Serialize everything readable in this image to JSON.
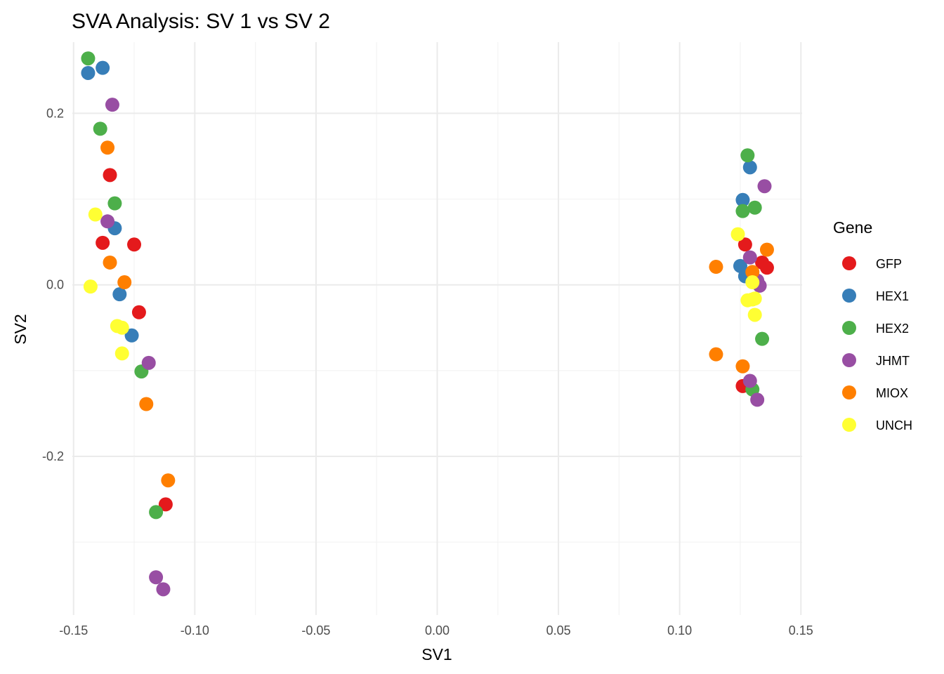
{
  "chart_data": {
    "type": "scatter",
    "title": "SVA Analysis: SV 1  vs SV 2",
    "xlabel": "SV1",
    "ylabel": "SV2",
    "xlim": [
      -0.1505,
      0.1505
    ],
    "ylim": [
      -0.385,
      0.283
    ],
    "x_ticks": [
      -0.15,
      -0.1,
      -0.05,
      0.0,
      0.05,
      0.1,
      0.15
    ],
    "x_tick_labels": [
      "-0.15",
      "-0.10",
      "-0.05",
      "0.00",
      "0.05",
      "0.10",
      "0.15"
    ],
    "y_ticks": [
      -0.2,
      0.0,
      0.2
    ],
    "y_tick_labels": [
      "-0.2",
      "0.0",
      "0.2"
    ],
    "grid": true,
    "legend": {
      "title": "Gene",
      "position": "right"
    },
    "series": [
      {
        "name": "GFP",
        "color": "#e41a1c",
        "points": [
          {
            "x": -0.135,
            "y": 0.128
          },
          {
            "x": -0.138,
            "y": 0.049
          },
          {
            "x": -0.125,
            "y": 0.047
          },
          {
            "x": -0.123,
            "y": -0.032
          },
          {
            "x": -0.112,
            "y": -0.256
          },
          {
            "x": 0.127,
            "y": 0.047
          },
          {
            "x": 0.134,
            "y": 0.026
          },
          {
            "x": 0.136,
            "y": 0.02
          },
          {
            "x": 0.126,
            "y": -0.118
          }
        ]
      },
      {
        "name": "HEX1",
        "color": "#377eb8",
        "points": [
          {
            "x": -0.144,
            "y": 0.247
          },
          {
            "x": -0.138,
            "y": 0.253
          },
          {
            "x": -0.133,
            "y": 0.066
          },
          {
            "x": -0.131,
            "y": -0.011
          },
          {
            "x": -0.126,
            "y": -0.059
          },
          {
            "x": 0.129,
            "y": 0.137
          },
          {
            "x": 0.126,
            "y": 0.099
          },
          {
            "x": 0.125,
            "y": 0.022
          },
          {
            "x": 0.127,
            "y": 0.01
          }
        ]
      },
      {
        "name": "HEX2",
        "color": "#4daf4a",
        "points": [
          {
            "x": -0.144,
            "y": 0.264
          },
          {
            "x": -0.139,
            "y": 0.182
          },
          {
            "x": -0.133,
            "y": 0.095
          },
          {
            "x": -0.122,
            "y": -0.101
          },
          {
            "x": -0.116,
            "y": -0.265
          },
          {
            "x": 0.128,
            "y": 0.151
          },
          {
            "x": 0.131,
            "y": 0.09
          },
          {
            "x": 0.126,
            "y": 0.086
          },
          {
            "x": 0.134,
            "y": -0.063
          },
          {
            "x": 0.13,
            "y": -0.122
          }
        ]
      },
      {
        "name": "JHMT",
        "color": "#984ea3",
        "points": [
          {
            "x": -0.134,
            "y": 0.21
          },
          {
            "x": -0.136,
            "y": 0.074
          },
          {
            "x": -0.119,
            "y": -0.091
          },
          {
            "x": -0.116,
            "y": -0.341
          },
          {
            "x": -0.113,
            "y": -0.355
          },
          {
            "x": 0.135,
            "y": 0.115
          },
          {
            "x": 0.129,
            "y": 0.032
          },
          {
            "x": 0.132,
            "y": 0.005
          },
          {
            "x": 0.133,
            "y": -0.001
          },
          {
            "x": 0.129,
            "y": -0.112
          },
          {
            "x": 0.132,
            "y": -0.134
          }
        ]
      },
      {
        "name": "MIOX",
        "color": "#ff7f00",
        "points": [
          {
            "x": -0.136,
            "y": 0.16
          },
          {
            "x": -0.135,
            "y": 0.026
          },
          {
            "x": -0.129,
            "y": 0.003
          },
          {
            "x": -0.12,
            "y": -0.139
          },
          {
            "x": -0.111,
            "y": -0.228
          },
          {
            "x": 0.136,
            "y": 0.041
          },
          {
            "x": 0.115,
            "y": 0.021
          },
          {
            "x": 0.13,
            "y": 0.015
          },
          {
            "x": 0.115,
            "y": -0.081
          },
          {
            "x": 0.126,
            "y": -0.095
          }
        ]
      },
      {
        "name": "UNCH",
        "color": "#ffff33",
        "points": [
          {
            "x": -0.141,
            "y": 0.082
          },
          {
            "x": -0.143,
            "y": -0.002
          },
          {
            "x": -0.132,
            "y": -0.048
          },
          {
            "x": -0.13,
            "y": -0.05
          },
          {
            "x": -0.13,
            "y": -0.08
          },
          {
            "x": 0.124,
            "y": 0.059
          },
          {
            "x": 0.13,
            "y": 0.003
          },
          {
            "x": 0.128,
            "y": -0.018
          },
          {
            "x": 0.13,
            "y": -0.017
          },
          {
            "x": 0.131,
            "y": -0.016
          },
          {
            "x": 0.131,
            "y": -0.035
          }
        ]
      }
    ]
  }
}
